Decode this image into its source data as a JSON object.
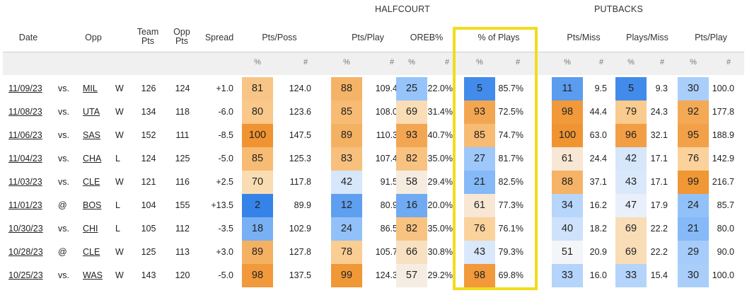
{
  "groups": {
    "halfcourt": "HALFCOURT",
    "putbacks": "PUTBACKS"
  },
  "headers": {
    "date": "Date",
    "opp": "Opp",
    "team_pts": "Team\nPts",
    "opp_pts": "Opp\nPts",
    "spread": "Spread",
    "pts_poss": "Pts/Poss",
    "hc_pts_play": "Pts/Play",
    "oreb": "OREB%",
    "pct_plays": "% of Plays",
    "pts_miss": "Pts/Miss",
    "plays_miss": "Plays/Miss",
    "pb_pts_play": "Pts/Play"
  },
  "subheaders": {
    "pct": "%",
    "num": "#"
  },
  "colors": {
    "highlight": "#f2dc1c",
    "header_bg": "#f0f0f0"
  },
  "rows": [
    {
      "date": "11/09/23",
      "loc": "vs.",
      "opp": "MIL",
      "wl": "W",
      "team": "126",
      "opp_pts": "124",
      "spread": "+1.0",
      "pp_p": 81,
      "pp_n": "124.0",
      "hp_p": 88,
      "hp_n": "109.4",
      "or_p": 25,
      "or_n": "22.0%",
      "pl_p": 5,
      "pl_n": "85.7%",
      "pm_p": 11,
      "pm_n": "9.5",
      "plm_p": 5,
      "plm_n": "9.3",
      "pb_p": 30,
      "pb_n": "100.0"
    },
    {
      "date": "11/08/23",
      "loc": "vs.",
      "opp": "UTA",
      "wl": "W",
      "team": "134",
      "opp_pts": "118",
      "spread": "-6.0",
      "pp_p": 80,
      "pp_n": "123.6",
      "hp_p": 85,
      "hp_n": "108.0",
      "or_p": 69,
      "or_n": "31.4%",
      "pl_p": 93,
      "pl_n": "72.5%",
      "pm_p": 98,
      "pm_n": "44.4",
      "plm_p": 79,
      "plm_n": "24.3",
      "pb_p": 92,
      "pb_n": "177.8"
    },
    {
      "date": "11/06/23",
      "loc": "vs.",
      "opp": "SAS",
      "wl": "W",
      "team": "152",
      "opp_pts": "111",
      "spread": "-8.5",
      "pp_p": 100,
      "pp_n": "147.5",
      "hp_p": 89,
      "hp_n": "110.3",
      "or_p": 93,
      "or_n": "40.7%",
      "pl_p": 85,
      "pl_n": "74.7%",
      "pm_p": 100,
      "pm_n": "63.0",
      "plm_p": 96,
      "plm_n": "32.1",
      "pb_p": 95,
      "pb_n": "188.9"
    },
    {
      "date": "11/04/23",
      "loc": "vs.",
      "opp": "CHA",
      "wl": "L",
      "team": "124",
      "opp_pts": "125",
      "spread": "-5.0",
      "pp_p": 85,
      "pp_n": "125.3",
      "hp_p": 83,
      "hp_n": "107.4",
      "or_p": 82,
      "or_n": "35.0%",
      "pl_p": 27,
      "pl_n": "81.7%",
      "pm_p": 61,
      "pm_n": "24.4",
      "plm_p": 42,
      "plm_n": "17.1",
      "pb_p": 76,
      "pb_n": "142.9"
    },
    {
      "date": "11/03/23",
      "loc": "vs.",
      "opp": "CLE",
      "wl": "W",
      "team": "121",
      "opp_pts": "116",
      "spread": "+2.5",
      "pp_p": 70,
      "pp_n": "117.8",
      "hp_p": 42,
      "hp_n": "91.5",
      "or_p": 58,
      "or_n": "29.4%",
      "pl_p": 21,
      "pl_n": "82.5%",
      "pm_p": 88,
      "pm_n": "37.1",
      "plm_p": 43,
      "plm_n": "17.1",
      "pb_p": 99,
      "pb_n": "216.7"
    },
    {
      "date": "11/01/23",
      "loc": "@",
      "opp": "BOS",
      "wl": "L",
      "team": "104",
      "opp_pts": "155",
      "spread": "+13.5",
      "pp_p": 2,
      "pp_n": "89.9",
      "hp_p": 12,
      "hp_n": "80.9",
      "or_p": 16,
      "or_n": "20.0%",
      "pl_p": 61,
      "pl_n": "77.3%",
      "pm_p": 34,
      "pm_n": "16.2",
      "plm_p": 47,
      "plm_n": "17.9",
      "pb_p": 24,
      "pb_n": "85.7"
    },
    {
      "date": "10/30/23",
      "loc": "vs.",
      "opp": "CHI",
      "wl": "L",
      "team": "105",
      "opp_pts": "112",
      "spread": "-3.5",
      "pp_p": 18,
      "pp_n": "102.9",
      "hp_p": 24,
      "hp_n": "86.5",
      "or_p": 82,
      "or_n": "35.0%",
      "pl_p": 76,
      "pl_n": "76.1%",
      "pm_p": 40,
      "pm_n": "18.2",
      "plm_p": 69,
      "plm_n": "22.2",
      "pb_p": 21,
      "pb_n": "80.0"
    },
    {
      "date": "10/28/23",
      "loc": "@",
      "opp": "CLE",
      "wl": "W",
      "team": "125",
      "opp_pts": "113",
      "spread": "+3.0",
      "pp_p": 89,
      "pp_n": "127.8",
      "hp_p": 78,
      "hp_n": "105.7",
      "or_p": 66,
      "or_n": "30.8%",
      "pl_p": 43,
      "pl_n": "79.3%",
      "pm_p": 51,
      "pm_n": "20.9",
      "plm_p": 69,
      "plm_n": "22.2",
      "pb_p": 29,
      "pb_n": "90.0"
    },
    {
      "date": "10/25/23",
      "loc": "vs.",
      "opp": "WAS",
      "wl": "W",
      "team": "143",
      "opp_pts": "120",
      "spread": "-5.0",
      "pp_p": 98,
      "pp_n": "137.5",
      "hp_p": 99,
      "hp_n": "124.3",
      "or_p": 57,
      "or_n": "29.2%",
      "pl_p": 98,
      "pl_n": "69.8%",
      "pm_p": 33,
      "pm_n": "16.0",
      "plm_p": 33,
      "plm_n": "15.4",
      "pb_p": 30,
      "pb_n": "100.0"
    }
  ]
}
